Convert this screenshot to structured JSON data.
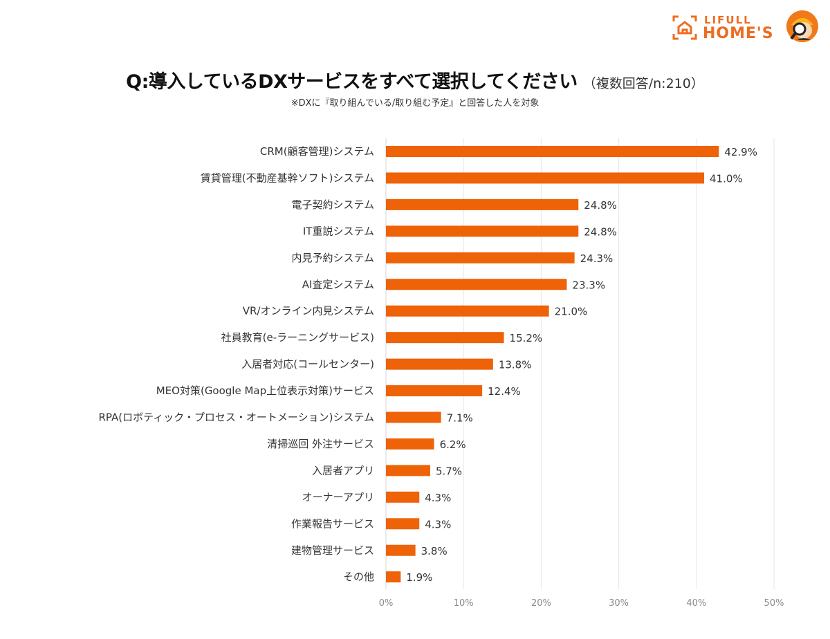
{
  "brand": {
    "line1": "LIFULL",
    "line2": "HOME'S",
    "frame_icon": "house-frame-icon",
    "mascot_icon": "mascot-magnifier-icon",
    "color": "#ED6D1F"
  },
  "header": {
    "title": "Q:導入しているDXサービスをすべて選択してください",
    "subtitle": "（複数回答/n:210）",
    "note": "※DXに『取り組んでいる/取り組む予定』と回答した人を対象"
  },
  "chart_data": {
    "type": "bar",
    "orientation": "horizontal",
    "title": "Q:導入しているDXサービスをすべて選択してください（複数回答/n:210）",
    "xlabel": "",
    "ylabel": "",
    "xlim": [
      0,
      50
    ],
    "ticks": [
      "0%",
      "10%",
      "20%",
      "30%",
      "40%",
      "50%"
    ],
    "tick_values": [
      0,
      10,
      20,
      30,
      40,
      50
    ],
    "grid": true,
    "bar_color": "#EE6208",
    "categories": [
      "CRM(顧客管理)システム",
      "賃貸管理(不動産基幹ソフト)システム",
      "電子契約システム",
      "IT重説システム",
      "内見予約システム",
      "AI査定システム",
      "VR/オンライン内見システム",
      "社員教育(e-ラーニングサービス)",
      "入居者対応(コールセンター)",
      "MEO対策(Google Map上位表示対策)サービス",
      "RPA(ロボティック・プロセス・オートメーション)システム",
      "清掃巡回 外注サービス",
      "入居者アプリ",
      "オーナーアプリ",
      "作業報告サービス",
      "建物管理サービス",
      "その他"
    ],
    "values": [
      42.9,
      41.0,
      24.8,
      24.8,
      24.3,
      23.3,
      21.0,
      15.2,
      13.8,
      12.4,
      7.1,
      6.2,
      5.7,
      4.3,
      4.3,
      3.8,
      1.9
    ],
    "value_labels": [
      "42.9%",
      "41.0%",
      "24.8%",
      "24.8%",
      "24.3%",
      "23.3%",
      "21.0%",
      "15.2%",
      "13.8%",
      "12.4%",
      "7.1%",
      "6.2%",
      "5.7%",
      "4.3%",
      "4.3%",
      "3.8%",
      "1.9%"
    ]
  }
}
